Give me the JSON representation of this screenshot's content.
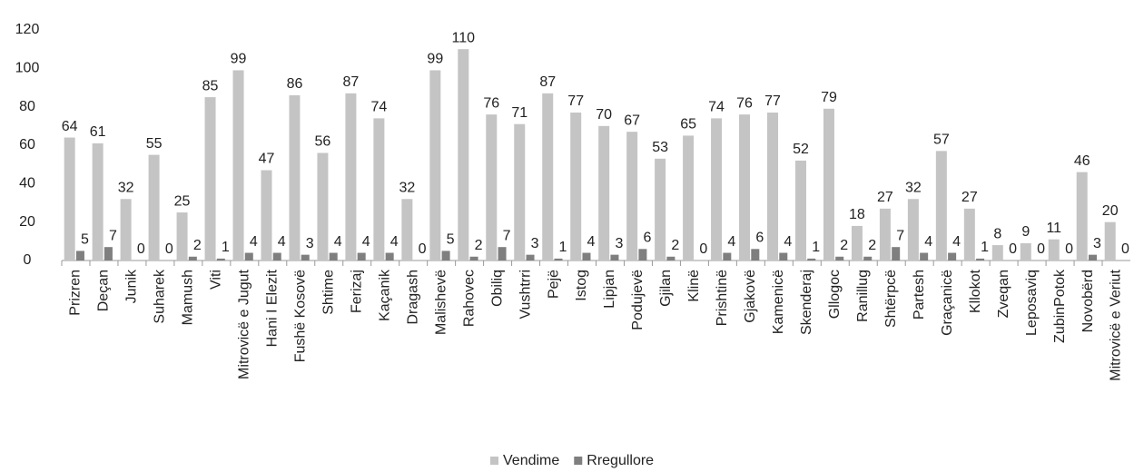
{
  "chart_data": {
    "type": "bar",
    "categories": [
      "Prizren",
      "Deçan",
      "Junik",
      "Suharek",
      "Mamush",
      "Viti",
      "Mitrovicë e Jugut",
      "Hani I Elezit",
      "Fushë Kosovë",
      "Shtime",
      "Ferizaj",
      "Kaçanik",
      "Dragash",
      "Malishevë",
      "Rahovec",
      "Obiliq",
      "Vushtrri",
      "Pejë",
      "Istog",
      "Lipjan",
      "Podujevë",
      "Gjilan",
      "Klinë",
      "Prishtinë",
      "Gjakovë",
      "Kamenicë",
      "Skenderaj",
      "Gllogoc",
      "Ranillug",
      "Shtërpcë",
      "Partesh",
      "Graçanicë",
      "Kllokot",
      "Zveqan",
      "Leposaviq",
      "ZubinPotok",
      "Novobërd",
      "Mitrovicë e Veriut"
    ],
    "series": [
      {
        "name": "Vendime",
        "color": "#c4c4c4",
        "values": [
          64,
          61,
          32,
          55,
          25,
          85,
          99,
          47,
          86,
          56,
          87,
          74,
          32,
          99,
          110,
          76,
          71,
          87,
          77,
          70,
          67,
          53,
          65,
          74,
          76,
          77,
          52,
          79,
          18,
          27,
          32,
          57,
          27,
          8,
          9,
          11,
          46,
          20
        ]
      },
      {
        "name": "Rregullore",
        "color": "#7f7f7f",
        "values": [
          5,
          7,
          0,
          0,
          2,
          1,
          4,
          4,
          3,
          4,
          4,
          4,
          0,
          5,
          2,
          7,
          3,
          1,
          4,
          3,
          6,
          2,
          0,
          4,
          6,
          4,
          1,
          2,
          2,
          7,
          4,
          4,
          1,
          0,
          0,
          0,
          3,
          0
        ]
      }
    ],
    "ylim": [
      0,
      120
    ],
    "yticks": [
      0,
      20,
      40,
      60,
      80,
      100,
      120
    ],
    "grid": false,
    "legend": "bottom"
  }
}
